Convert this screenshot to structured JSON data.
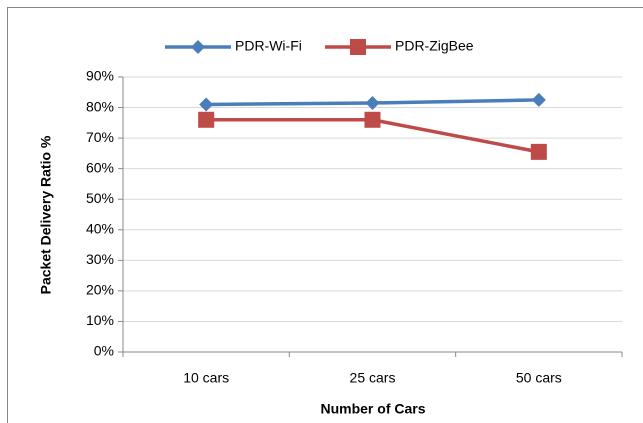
{
  "chart_data": {
    "type": "line",
    "xlabel": "Number of Cars",
    "ylabel": "Packet Delivery Ratio %",
    "categories": [
      "10 cars",
      "25 cars",
      "50 cars"
    ],
    "series": [
      {
        "name": "PDR-Wi-Fi",
        "color": "#4a7ebb",
        "marker": "diamond",
        "values": [
          81,
          81.5,
          82.5
        ]
      },
      {
        "name": "PDR-ZigBee",
        "color": "#be4b48",
        "marker": "square",
        "values": [
          76,
          76,
          65.5
        ]
      }
    ],
    "ylim": [
      0,
      90
    ],
    "yticks": [
      {
        "value": 0,
        "label": "0%"
      },
      {
        "value": 10,
        "label": "10%"
      },
      {
        "value": 20,
        "label": "20%"
      },
      {
        "value": 30,
        "label": "30%"
      },
      {
        "value": 40,
        "label": "40%"
      },
      {
        "value": 50,
        "label": "50%"
      },
      {
        "value": 60,
        "label": "60%"
      },
      {
        "value": 70,
        "label": "70%"
      },
      {
        "value": 80,
        "label": "80%"
      },
      {
        "value": 90,
        "label": "90%"
      }
    ],
    "grid": true,
    "legend": "top"
  }
}
